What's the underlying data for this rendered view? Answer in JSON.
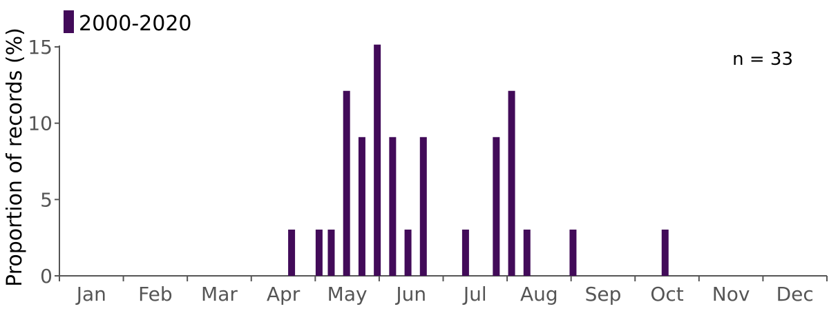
{
  "chart_data": {
    "type": "bar",
    "legend": {
      "label": "2000-2020",
      "position": "top-left",
      "color": "#420b59"
    },
    "annotation": "n = 33",
    "ylabel": "Proportion of records (%)",
    "xlabel": "",
    "ylim": [
      0,
      15
    ],
    "yticks": [
      "0",
      "5",
      "10",
      "15"
    ],
    "xlim": [
      0,
      12
    ],
    "month_labels": [
      "Jan",
      "Feb",
      "Mar",
      "Apr",
      "May",
      "Jun",
      "Jul",
      "Aug",
      "Sep",
      "Oct",
      "Nov",
      "Dec"
    ],
    "grid": false,
    "series": [
      {
        "name": "2000-2020",
        "color": "#420b59",
        "points": [
          {
            "x": 3.63,
            "y": 3.03
          },
          {
            "x": 4.06,
            "y": 3.03
          },
          {
            "x": 4.25,
            "y": 3.03
          },
          {
            "x": 4.49,
            "y": 12.12
          },
          {
            "x": 4.73,
            "y": 9.09
          },
          {
            "x": 4.97,
            "y": 15.15
          },
          {
            "x": 5.21,
            "y": 9.09
          },
          {
            "x": 5.45,
            "y": 3.03
          },
          {
            "x": 5.69,
            "y": 9.09
          },
          {
            "x": 6.35,
            "y": 3.03
          },
          {
            "x": 6.83,
            "y": 9.09
          },
          {
            "x": 7.07,
            "y": 12.12
          },
          {
            "x": 7.31,
            "y": 3.03
          },
          {
            "x": 8.03,
            "y": 3.03
          },
          {
            "x": 9.47,
            "y": 3.03
          }
        ]
      }
    ]
  }
}
